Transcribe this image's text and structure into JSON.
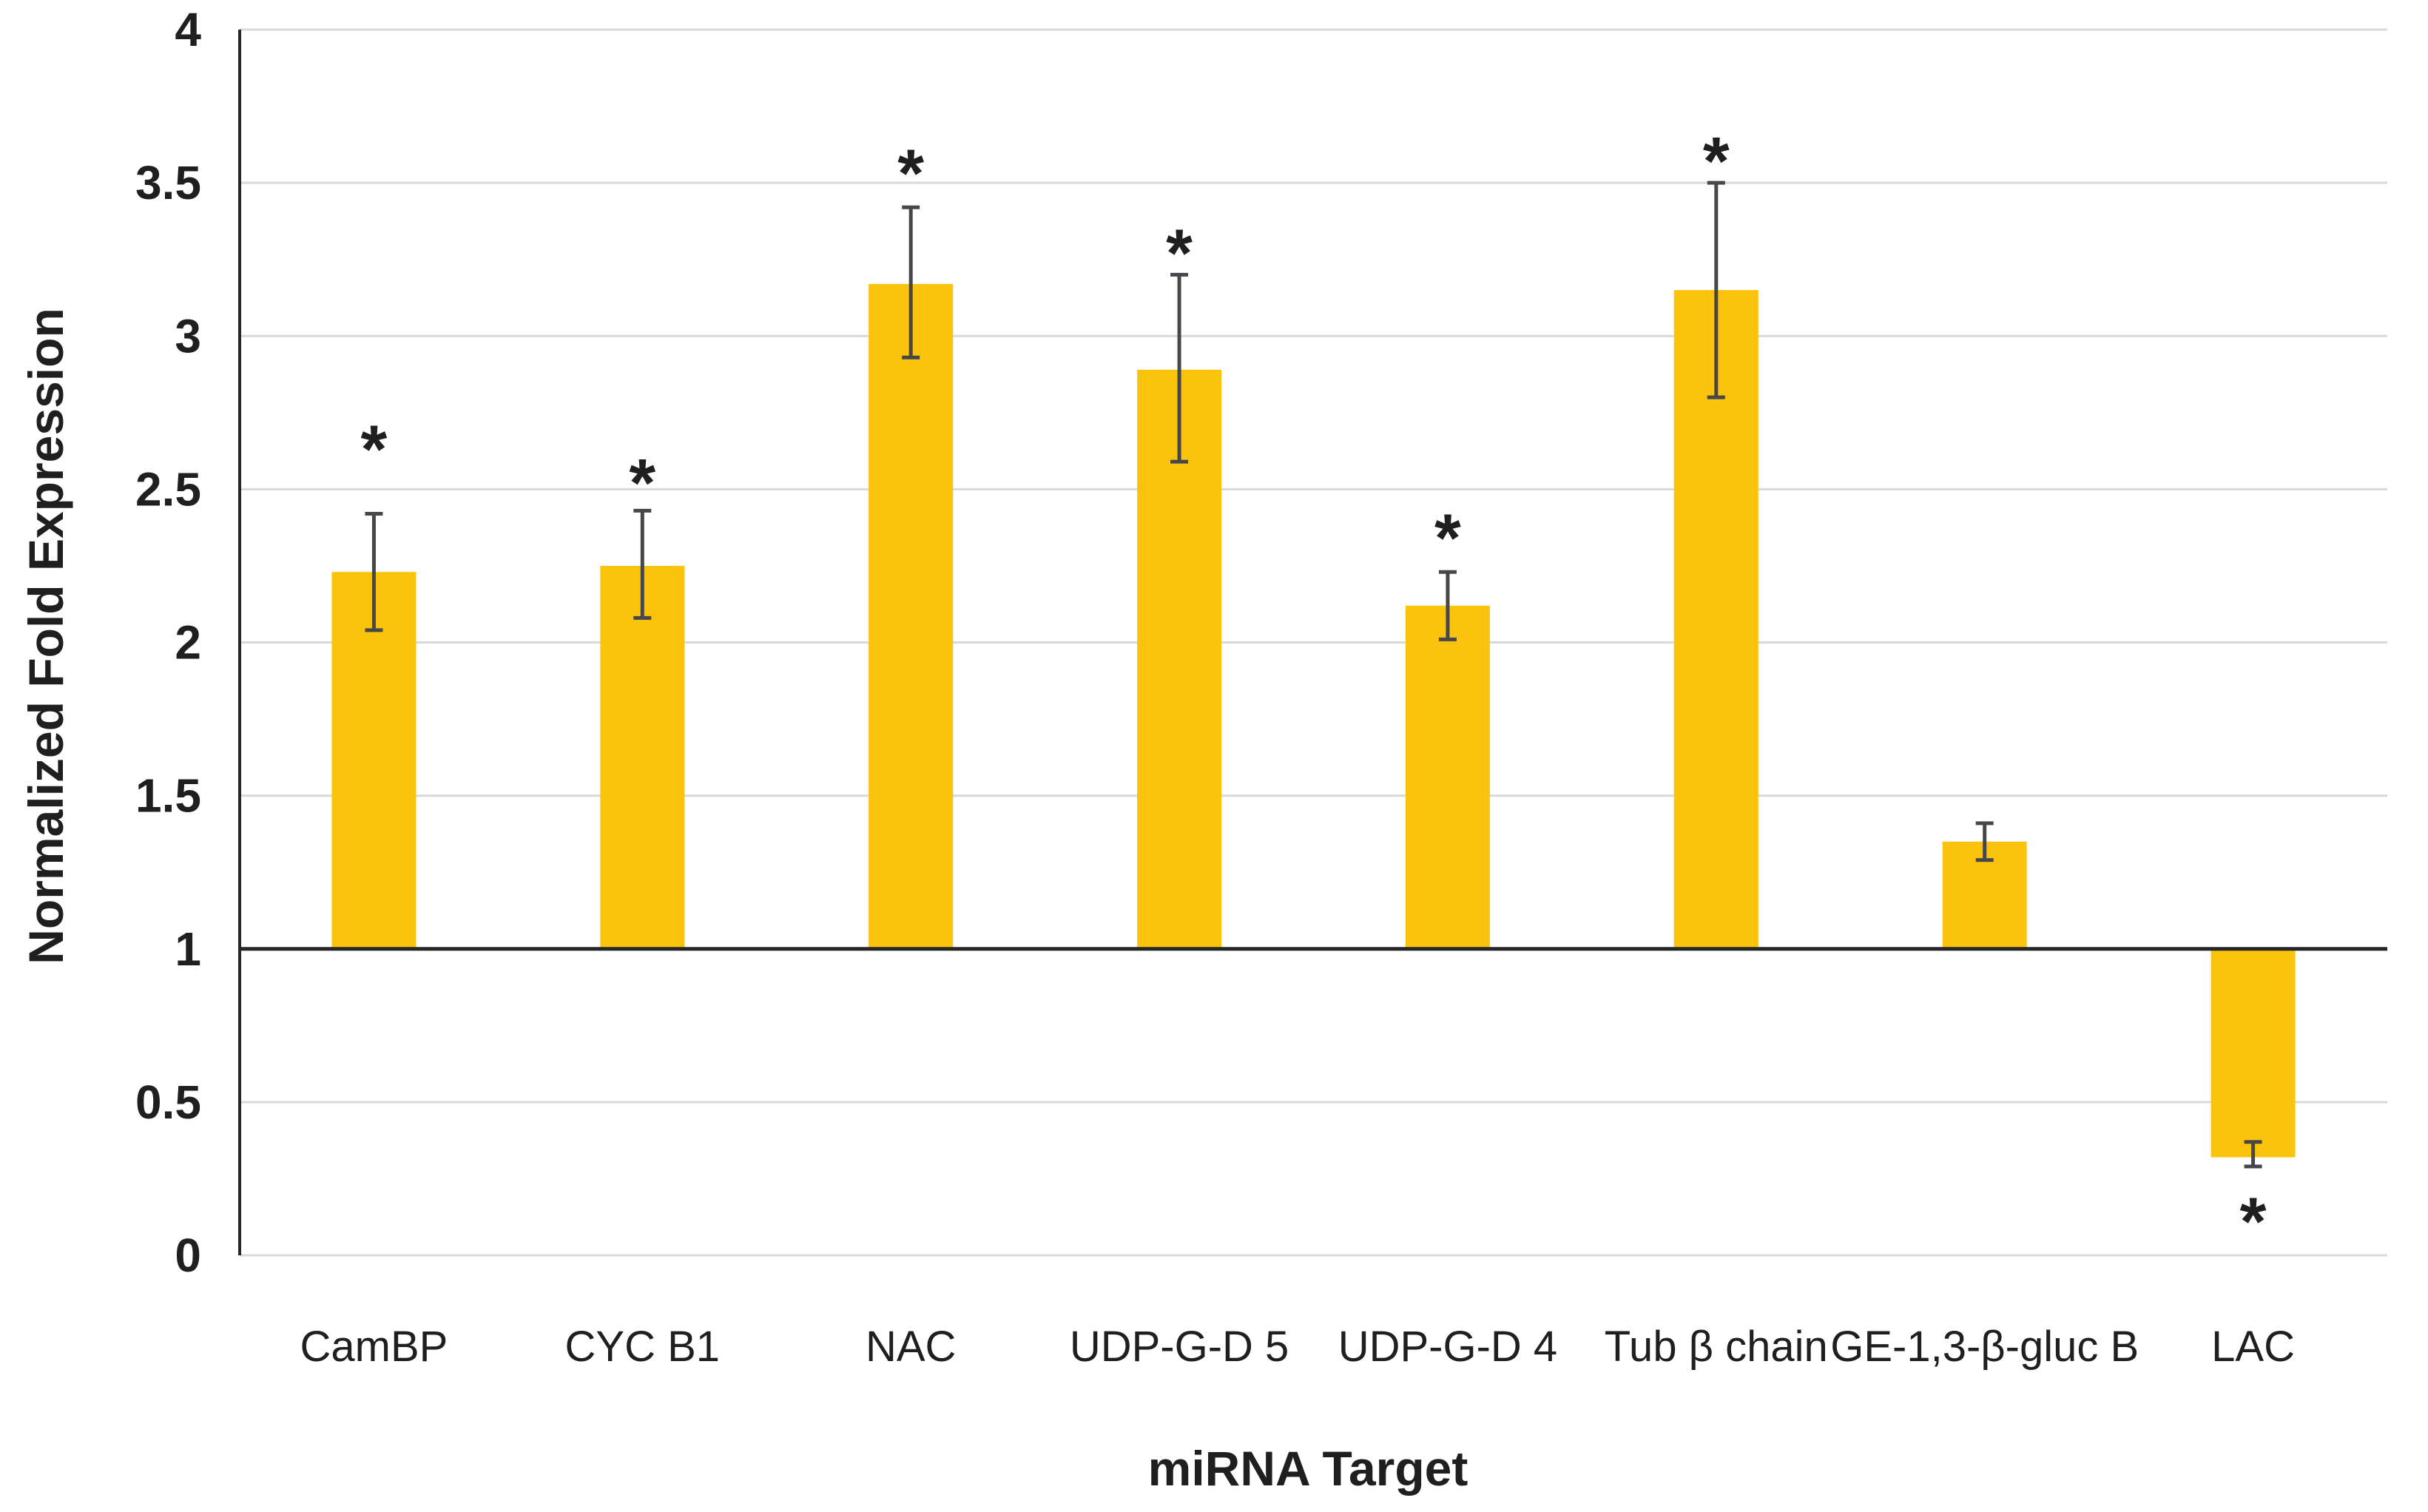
{
  "chart_data": {
    "type": "bar",
    "title": "",
    "xlabel": "miRNA Target",
    "ylabel": "Normalized Fold Expression",
    "ylim": [
      0,
      4
    ],
    "yticks": [
      0,
      0.5,
      1,
      1.5,
      2,
      2.5,
      3,
      3.5,
      4
    ],
    "ytick_labels": [
      "0",
      "0.5",
      "1",
      "1.5",
      "2",
      "2.5",
      "3",
      "3.5",
      "4"
    ],
    "baseline": 1,
    "grid": true,
    "legend": false,
    "categories": [
      "CamBP",
      "CYC B1",
      "NAC",
      "UDP-G-D 5",
      "UDP-G-D 4",
      "Tub β chain",
      "GE-1,3-β-gluc B",
      "LAC"
    ],
    "values": [
      2.23,
      2.25,
      3.17,
      2.89,
      2.12,
      3.15,
      1.35,
      0.32
    ],
    "error_upper": [
      2.42,
      2.43,
      3.42,
      3.2,
      2.23,
      3.5,
      1.41,
      0.37
    ],
    "error_lower": [
      2.04,
      2.08,
      2.93,
      2.59,
      2.01,
      2.8,
      1.29,
      0.29
    ],
    "significance_marker": "*",
    "significant": [
      true,
      true,
      true,
      true,
      true,
      true,
      false,
      true
    ],
    "sig_marker_y": [
      2.67,
      2.56,
      3.57,
      3.31,
      2.38,
      3.61,
      null,
      0.15
    ],
    "colors": {
      "bar": "#FCC30D",
      "error": "#45474B",
      "grid": "#D9D9D9",
      "axis": "#262626",
      "text": "#1F1F1F",
      "background": "#FFFFFF"
    }
  }
}
